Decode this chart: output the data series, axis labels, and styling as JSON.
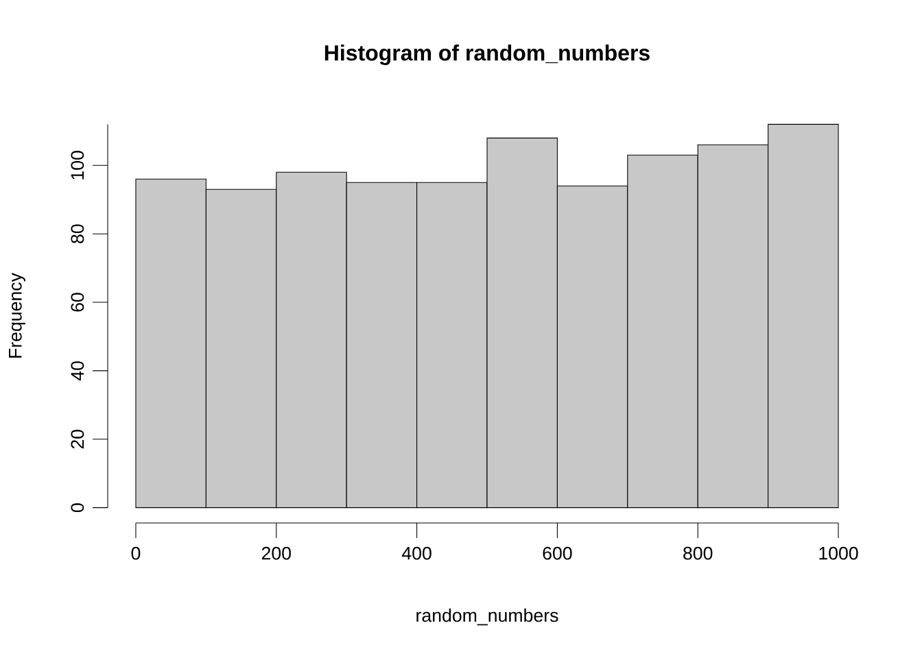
{
  "chart_data": {
    "type": "histogram",
    "title": "Histogram of random_numbers",
    "xlabel": "random_numbers",
    "ylabel": "Frequency",
    "bins": [
      0,
      100,
      200,
      300,
      400,
      500,
      600,
      700,
      800,
      900,
      1000
    ],
    "values": [
      96,
      93,
      98,
      95,
      95,
      108,
      94,
      103,
      106,
      112
    ],
    "color": "#c8c8c8",
    "xlim": [
      0,
      1000
    ],
    "ylim": [
      0,
      112
    ],
    "xticks": [
      0,
      200,
      400,
      600,
      800,
      1000
    ],
    "yticks": [
      0,
      20,
      40,
      60,
      80,
      100
    ],
    "grid": false
  }
}
